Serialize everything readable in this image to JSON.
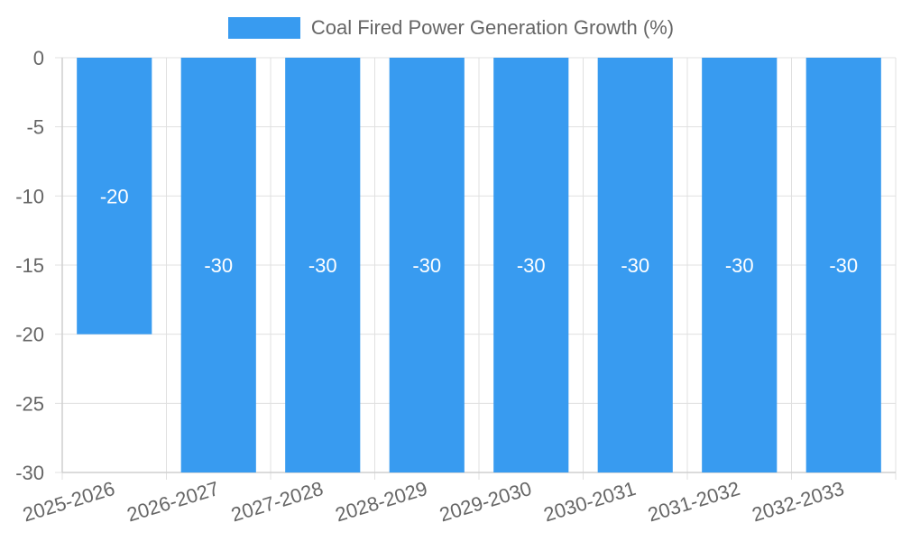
{
  "chart_data": {
    "type": "bar",
    "categories": [
      "2025-2026",
      "2026-2027",
      "2027-2028",
      "2028-2029",
      "2029-2030",
      "2030-2031",
      "2031-2032",
      "2032-2033"
    ],
    "series": [
      {
        "name": "Coal Fired Power Generation Growth (%)",
        "values": [
          -20,
          -30,
          -30,
          -30,
          -30,
          -30,
          -30,
          -30
        ],
        "color": "#389bf0"
      }
    ],
    "title": "",
    "xlabel": "",
    "ylabel": "",
    "ylim": [
      -30,
      0
    ],
    "yticks": [
      0,
      -5,
      -10,
      -15,
      -20,
      -25,
      -30
    ],
    "grid": true,
    "legend_position": "top-center",
    "data_labels": true
  }
}
